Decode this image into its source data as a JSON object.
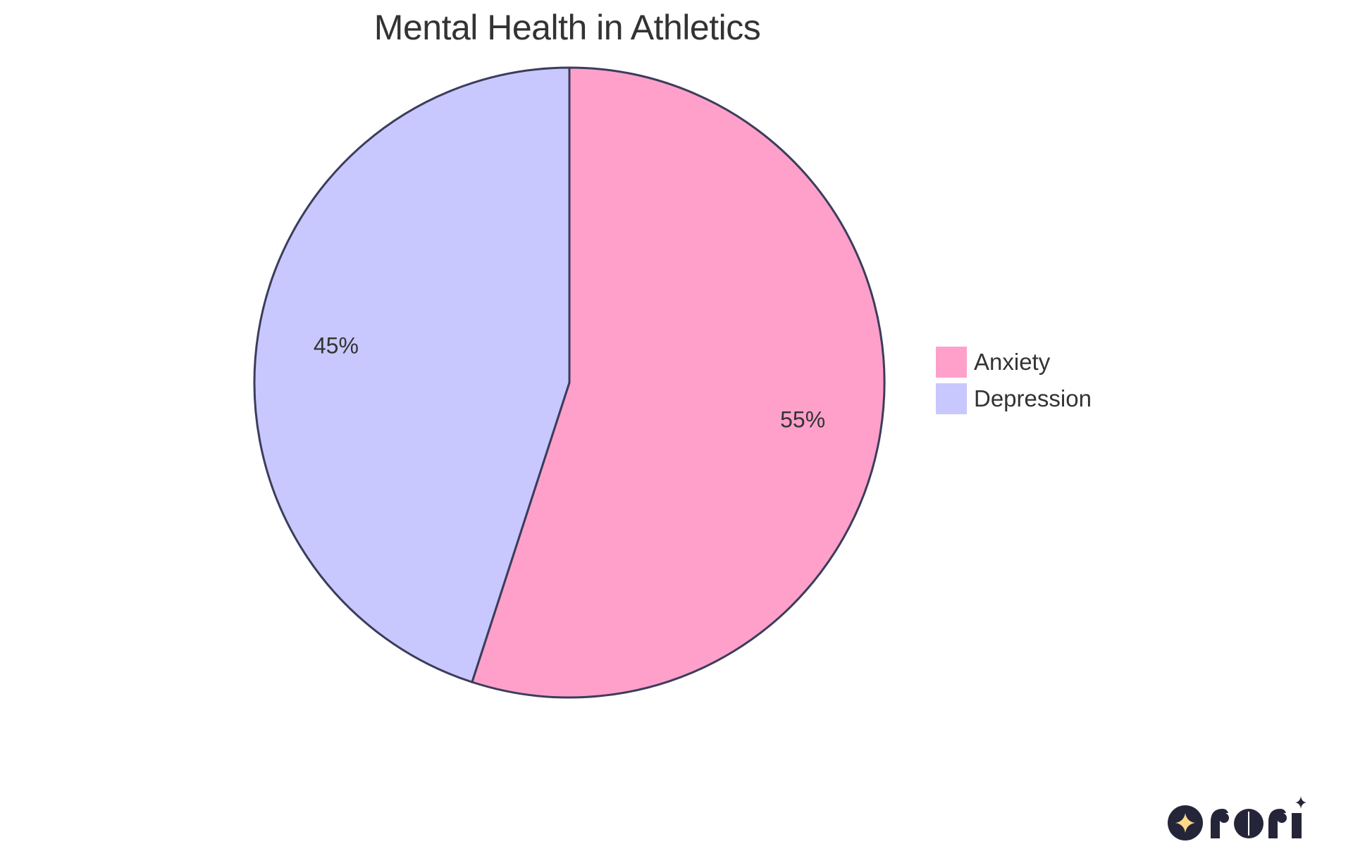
{
  "chart_data": {
    "type": "pie",
    "title": "Mental Health in Athletics",
    "categories": [
      "Anxiety",
      "Depression"
    ],
    "values": [
      55,
      45
    ],
    "labels": [
      "55%",
      "45%"
    ],
    "colors": [
      "#FFA0CB",
      "#C8C8FF"
    ],
    "stroke_color": "#3B3D5B",
    "legend_position": "right"
  },
  "title": "Mental Health in Athletics",
  "slices": [
    {
      "name": "Anxiety",
      "value": 55,
      "label": "55%",
      "color": "#FFA0CB"
    },
    {
      "name": "Depression",
      "value": 45,
      "label": "45%",
      "color": "#C8C8FF"
    }
  ],
  "legend": [
    {
      "label": "Anxiety",
      "color": "#FFA0CB"
    },
    {
      "label": "Depression",
      "color": "#C8C8FF"
    }
  ],
  "logo": {
    "icon": "sparkle-icon",
    "text": "rori"
  }
}
